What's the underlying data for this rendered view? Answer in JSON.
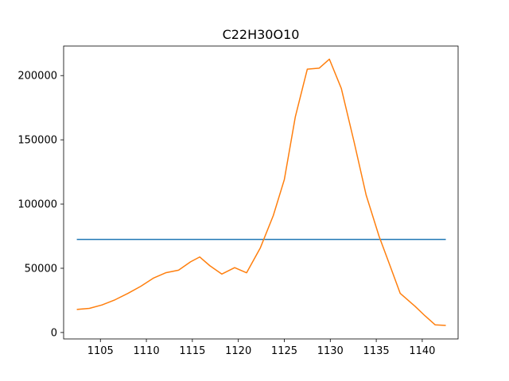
{
  "chart_data": {
    "type": "line",
    "title": "C22H30O10",
    "xlabel": "",
    "ylabel": "",
    "xlim": [
      1101.0,
      1143.9
    ],
    "ylim": [
      -5000,
      223000
    ],
    "grid": false,
    "legend": "none",
    "xticks": [
      1105,
      1110,
      1115,
      1120,
      1125,
      1130,
      1135,
      1140
    ],
    "xtick_labels": [
      "1105",
      "1110",
      "1115",
      "1120",
      "1125",
      "1130",
      "1135",
      "1140"
    ],
    "yticks": [
      0,
      50000,
      100000,
      150000,
      200000
    ],
    "ytick_labels": [
      "0",
      "50000",
      "100000",
      "150000",
      "200000"
    ],
    "series": [
      {
        "color": "#1f77b4",
        "x": [
          1102.5,
          1142.5
        ],
        "y": [
          72500,
          72500
        ]
      },
      {
        "color": "#ff7f0e",
        "x": [
          1102.5,
          1103.8,
          1105.2,
          1106.6,
          1108.0,
          1109.4,
          1110.8,
          1112.1,
          1113.5,
          1114.8,
          1115.8,
          1116.9,
          1118.2,
          1119.6,
          1120.9,
          1122.4,
          1123.8,
          1125.0,
          1126.2,
          1127.5,
          1128.8,
          1129.9,
          1131.2,
          1132.6,
          1133.9,
          1135.3,
          1136.6,
          1137.6,
          1139.2,
          1140.3,
          1141.4,
          1142.5
        ],
        "y": [
          18000,
          18800,
          21500,
          25500,
          30500,
          36000,
          42500,
          46500,
          48500,
          55000,
          58800,
          52000,
          45500,
          50500,
          46500,
          66000,
          91000,
          119000,
          168000,
          205000,
          205800,
          212800,
          190000,
          148000,
          107000,
          75000,
          50000,
          30500,
          20500,
          13000,
          6000,
          5500
        ]
      }
    ]
  }
}
